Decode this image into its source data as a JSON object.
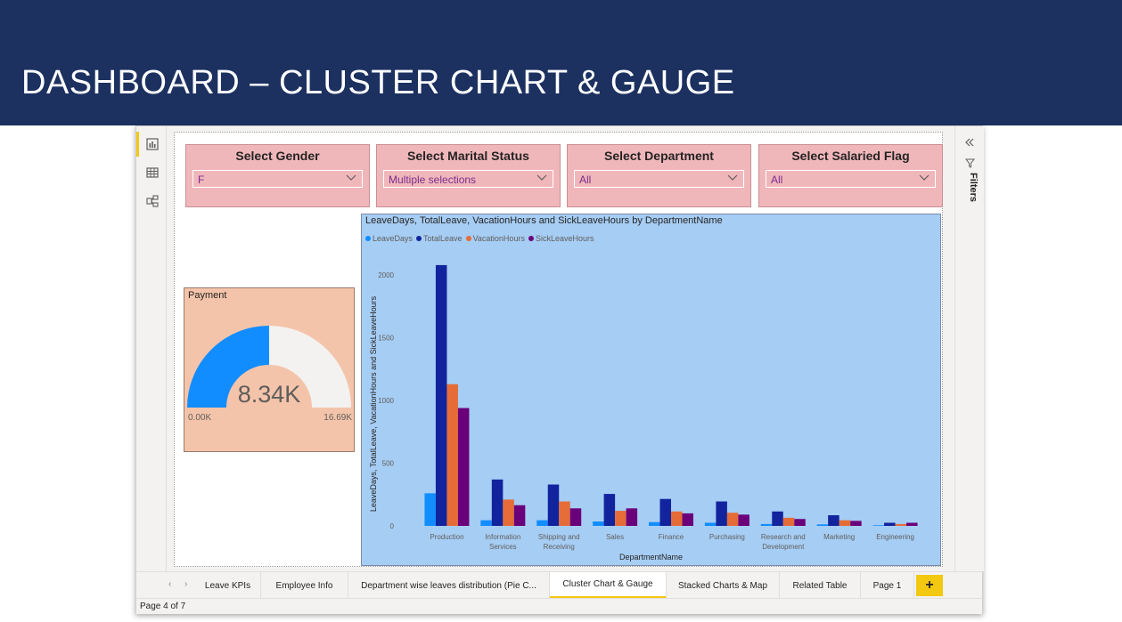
{
  "banner": {
    "title": "DASHBOARD – CLUSTER CHART & GAUGE"
  },
  "rail": {
    "icons": [
      "report-view-icon",
      "table-view-icon",
      "model-view-icon"
    ]
  },
  "slicers": [
    {
      "title": "Select Gender",
      "value": "F"
    },
    {
      "title": "Select Marital Status",
      "value": "Multiple selections"
    },
    {
      "title": "Select Department",
      "value": "All"
    },
    {
      "title": "Select Salaried Flag",
      "value": "All"
    }
  ],
  "gauge": {
    "title": "Payment",
    "value_label": "8.34K",
    "min_label": "0.00K",
    "max_label": "16.69K",
    "value": 8.34,
    "min": 0,
    "max": 16.69,
    "fill_color": "#118dff",
    "track_color": "#f3f2f1"
  },
  "filters_pane": {
    "label": "Filters"
  },
  "chart_data": {
    "type": "bar",
    "title": "LeaveDays, TotalLeave, VacationHours and SickLeaveHours by DepartmentName",
    "xlabel": "DepartmentName",
    "ylabel": "LeaveDays, TotalLeave, VacationHours and SickLeaveHours",
    "ylim": [
      0,
      2200
    ],
    "yticks": [
      0,
      500,
      1000,
      1500,
      2000
    ],
    "grid": false,
    "legend_position": "top-left",
    "categories": [
      "Production",
      "Information Services",
      "Shipping and Receiving",
      "Sales",
      "Finance",
      "Purchasing",
      "Research and Development",
      "Marketing",
      "Engineering"
    ],
    "series": [
      {
        "name": "LeaveDays",
        "color": "#118dff",
        "values": [
          260,
          45,
          45,
          35,
          30,
          25,
          15,
          12,
          5
        ]
      },
      {
        "name": "TotalLeave",
        "color": "#12239e",
        "values": [
          2080,
          370,
          330,
          255,
          215,
          195,
          115,
          85,
          25
        ]
      },
      {
        "name": "VacationHours",
        "color": "#e66c37",
        "values": [
          1130,
          210,
          195,
          120,
          115,
          105,
          65,
          45,
          15
        ]
      },
      {
        "name": "SickLeaveHours",
        "color": "#6b007b",
        "values": [
          940,
          165,
          140,
          140,
          100,
          90,
          55,
          40,
          25
        ]
      }
    ]
  },
  "tabs": {
    "items": [
      "Leave KPIs",
      "Employee Info",
      "Department wise leaves distribution (Pie C...",
      "Cluster Chart & Gauge",
      "Stacked Charts & Map",
      "Related Table",
      "Page 1"
    ],
    "active": "Cluster Chart & Gauge",
    "add_label": "+"
  },
  "status": {
    "page_text": "Page 4 of 7"
  }
}
